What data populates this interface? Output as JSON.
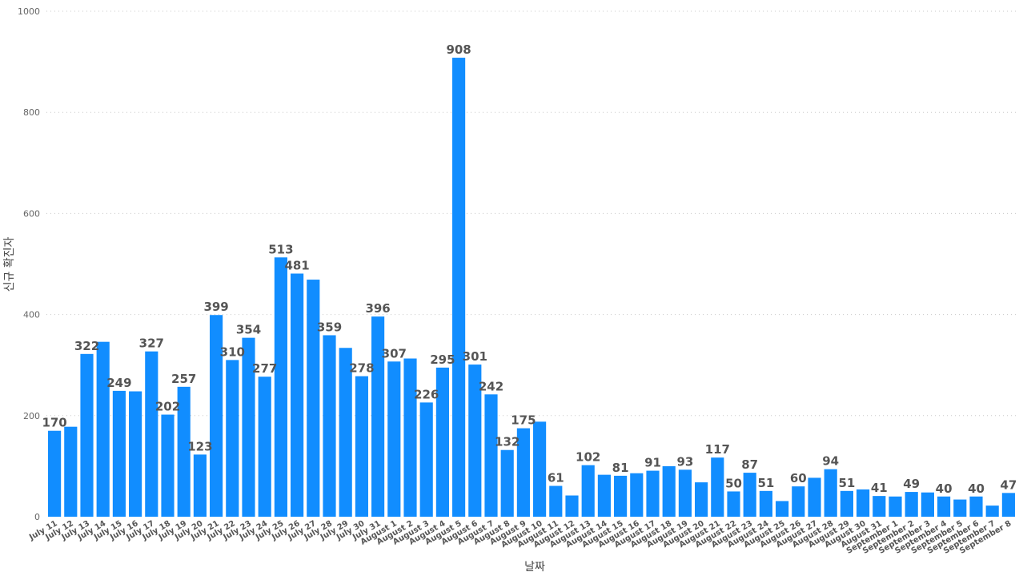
{
  "chart_data": {
    "type": "bar",
    "xlabel": "날짜",
    "ylabel": "신규 확진자",
    "ylim": [
      0,
      1000
    ],
    "yticks": [
      0,
      200,
      400,
      600,
      800,
      1000
    ],
    "grid": true,
    "bar_color": "#118dff",
    "categories": [
      "July 11",
      "July 12",
      "July 13",
      "July 14",
      "July 15",
      "July 16",
      "July 17",
      "July 18",
      "July 19",
      "July 20",
      "July 21",
      "July 22",
      "July 23",
      "July 24",
      "July 25",
      "July 26",
      "July 27",
      "July 28",
      "July 29",
      "July 30",
      "July 31",
      "August 1",
      "August 2",
      "August 3",
      "August 4",
      "August 5",
      "August 6",
      "August 7",
      "August 8",
      "August 9",
      "August 10",
      "August 11",
      "August 12",
      "August 13",
      "August 14",
      "August 15",
      "August 16",
      "August 17",
      "August 18",
      "August 19",
      "August 20",
      "August 21",
      "August 22",
      "August 23",
      "August 24",
      "August 25",
      "August 26",
      "August 27",
      "August 28",
      "August 29",
      "August 30",
      "August 31",
      "September 1",
      "September 2",
      "September 3",
      "September 4",
      "September 5",
      "September 6",
      "September 7",
      "September 8"
    ],
    "values": [
      170,
      178,
      322,
      346,
      249,
      248,
      327,
      202,
      257,
      123,
      399,
      310,
      354,
      277,
      513,
      481,
      469,
      359,
      334,
      278,
      396,
      307,
      313,
      226,
      295,
      908,
      301,
      242,
      132,
      175,
      188,
      61,
      42,
      102,
      83,
      81,
      86,
      91,
      100,
      93,
      68,
      117,
      50,
      87,
      51,
      31,
      60,
      77,
      94,
      51,
      54,
      41,
      40,
      49,
      48,
      40,
      34,
      40,
      22,
      47
    ],
    "labels": [
      "170",
      "",
      "322",
      "",
      "249",
      "",
      "327",
      "202",
      "257",
      "123",
      "399",
      "310",
      "354",
      "277",
      "513",
      "481",
      "",
      "359",
      "",
      "278",
      "396",
      "307",
      "",
      "226",
      "295",
      "908",
      "301",
      "242",
      "132",
      "175",
      "",
      "61",
      "",
      "102",
      "",
      "81",
      "",
      "91",
      "",
      "93",
      "",
      "117",
      "50",
      "87",
      "51",
      "",
      "60",
      "",
      "94",
      "51",
      "",
      "41",
      "",
      "49",
      "",
      "40",
      "",
      "40",
      "",
      "47"
    ]
  }
}
